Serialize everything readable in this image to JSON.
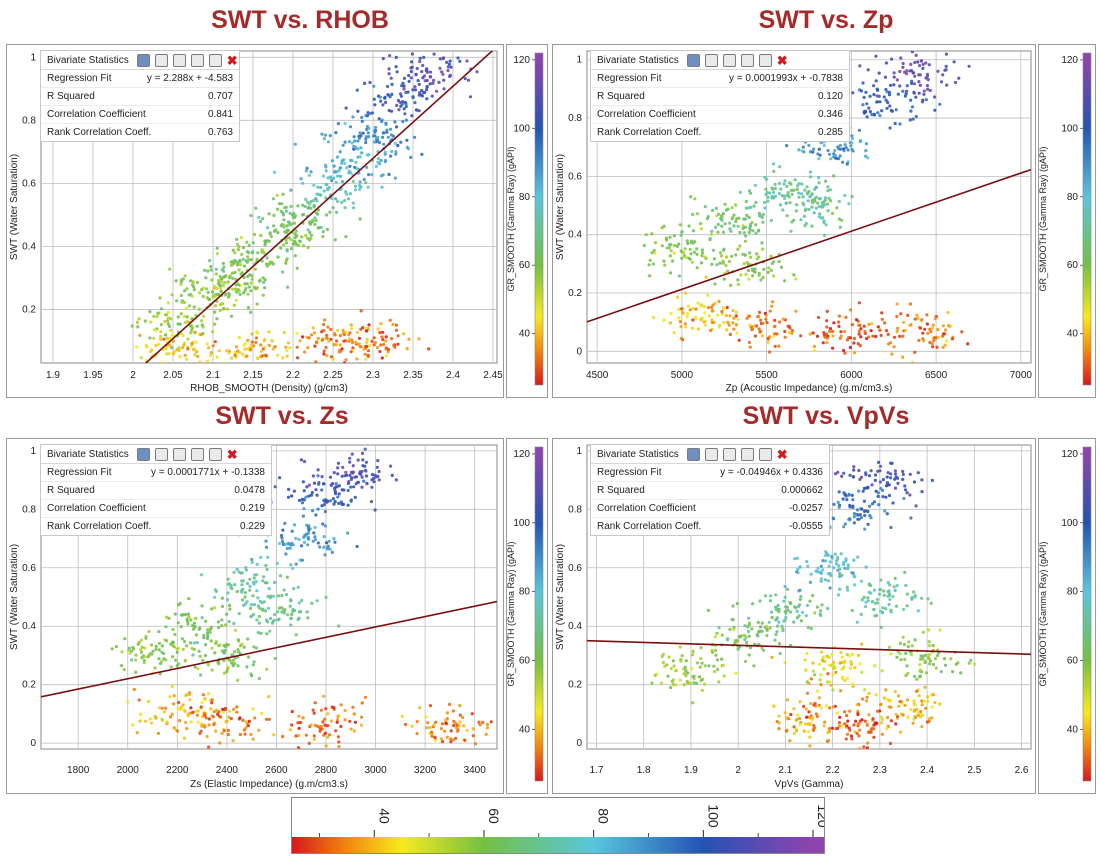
{
  "panels": [
    {
      "title": "SWT vs. RHOB",
      "stats": {
        "header": "Bivariate Statistics",
        "rows": [
          {
            "label": "Regression Fit",
            "value": "y = 2.288x + -4.583"
          },
          {
            "label": "R Squared",
            "value": "0.707"
          },
          {
            "label": "Correlation Coefficient",
            "value": "0.841"
          },
          {
            "label": "Rank Correlation Coeff.",
            "value": "0.763"
          }
        ]
      }
    },
    {
      "title": "SWT vs. Zp",
      "stats": {
        "header": "Bivariate Statistics",
        "rows": [
          {
            "label": "Regression Fit",
            "value": "y = 0.0001993x + -0.7838"
          },
          {
            "label": "R Squared",
            "value": "0.120"
          },
          {
            "label": "Correlation Coefficient",
            "value": "0.346"
          },
          {
            "label": "Rank Correlation Coeff.",
            "value": "0.285"
          }
        ]
      }
    },
    {
      "title": "SWT vs. Zs",
      "stats": {
        "header": "Bivariate Statistics",
        "rows": [
          {
            "label": "Regression Fit",
            "value": "y = 0.0001771x + -0.1338"
          },
          {
            "label": "R Squared",
            "value": "0.0478"
          },
          {
            "label": "Correlation Coefficient",
            "value": "0.219"
          },
          {
            "label": "Rank Correlation Coeff.",
            "value": "0.229"
          }
        ]
      }
    },
    {
      "title": "SWT vs. VpVs",
      "stats": {
        "header": "Bivariate Statistics",
        "rows": [
          {
            "label": "Regression Fit",
            "value": "y = -0.04946x + 0.4336"
          },
          {
            "label": "R Squared",
            "value": "0.000662"
          },
          {
            "label": "Correlation Coefficient",
            "value": "-0.0257"
          },
          {
            "label": "Rank Correlation Coeff.",
            "value": "-0.0555"
          }
        ]
      }
    }
  ],
  "colors": {
    "title": "#a52a2a",
    "regression_line": "#7b0f0f",
    "grid": "#bdbdbd",
    "gamma_stops": [
      {
        "v": 25,
        "c": "#d7191c"
      },
      {
        "v": 35,
        "c": "#f0880e"
      },
      {
        "v": 45,
        "c": "#f7ea1e"
      },
      {
        "v": 60,
        "c": "#74c043"
      },
      {
        "v": 80,
        "c": "#59c6dc"
      },
      {
        "v": 100,
        "c": "#2454b3"
      },
      {
        "v": 120,
        "c": "#8e44ad"
      }
    ]
  },
  "colorbar": {
    "title": "GR_SMOOTH (Gamma Ray) (gAPI)",
    "ticks": [
      "40",
      "60",
      "80",
      "100",
      "120"
    ],
    "range": [
      25,
      122
    ]
  },
  "chart_data": [
    {
      "type": "scatter",
      "title": "SWT vs. RHOB",
      "xlabel": "RHOB_SMOOTH (Density) (g/cm3)",
      "ylabel": "SWT (Water Saturation)",
      "xlim": [
        1.885,
        2.455
      ],
      "ylim": [
        0.03,
        1.02
      ],
      "xticks": [
        "1.9",
        "1.95",
        "2",
        "2.05",
        "2.1",
        "2.15",
        "2.2",
        "2.25",
        "2.3",
        "2.35",
        "2.4",
        "2.45"
      ],
      "yticks": [
        "0.2",
        "0.4",
        "0.6",
        "0.8",
        "1"
      ],
      "regression": {
        "slope": 2.288,
        "intercept": -4.583
      },
      "color_by": "GR_SMOOTH (Gamma Ray) (gAPI)",
      "points": [
        [
          2.05,
          0.15,
          56
        ],
        [
          2.1,
          0.25,
          58
        ],
        [
          2.15,
          0.35,
          62
        ],
        [
          2.2,
          0.5,
          66
        ],
        [
          2.25,
          0.6,
          78
        ],
        [
          2.3,
          0.75,
          90
        ],
        [
          2.33,
          0.88,
          102
        ],
        [
          2.37,
          0.95,
          108
        ],
        [
          2.05,
          0.08,
          42
        ],
        [
          2.15,
          0.07,
          40
        ],
        [
          2.25,
          0.09,
          36
        ],
        [
          2.3,
          0.1,
          32
        ],
        [
          2.2,
          0.42,
          60
        ],
        [
          2.28,
          0.68,
          85
        ],
        [
          2.12,
          0.28,
          57
        ]
      ]
    },
    {
      "type": "scatter",
      "title": "SWT vs. Zp",
      "xlabel": "Zp (Acoustic Impedance) (g.m/cm3.s)",
      "ylabel": "SWT (Water Saturation)",
      "xlim": [
        4440,
        7060
      ],
      "ylim": [
        -0.04,
        1.03
      ],
      "xticks": [
        "4500",
        "5000",
        "5500",
        "6000",
        "6500",
        "7000"
      ],
      "yticks": [
        "0",
        "0.2",
        "0.4",
        "0.6",
        "0.8",
        "1"
      ],
      "regression": {
        "slope": 0.0001993,
        "intercept": -0.7838
      },
      "color_by": "GR_SMOOTH (Gamma Ray) (gAPI)",
      "points": [
        [
          5000,
          0.35,
          60
        ],
        [
          5300,
          0.45,
          65
        ],
        [
          5600,
          0.55,
          72
        ],
        [
          5900,
          0.7,
          88
        ],
        [
          6200,
          0.85,
          100
        ],
        [
          6400,
          0.95,
          110
        ],
        [
          5100,
          0.12,
          40
        ],
        [
          5500,
          0.08,
          34
        ],
        [
          6000,
          0.07,
          30
        ],
        [
          6400,
          0.07,
          34
        ],
        [
          5400,
          0.3,
          58
        ],
        [
          5800,
          0.5,
          70
        ]
      ]
    },
    {
      "type": "scatter",
      "title": "SWT vs. Zs",
      "xlabel": "Zs (Elastic Impedance) (g.m/cm3.s)",
      "ylabel": "SWT (Water Saturation)",
      "xlim": [
        1650,
        3490
      ],
      "ylim": [
        -0.02,
        1.02
      ],
      "xticks": [
        "1800",
        "2000",
        "2200",
        "2400",
        "2600",
        "2800",
        "3000",
        "3200",
        "3400"
      ],
      "yticks": [
        "0",
        "0.2",
        "0.4",
        "0.6",
        "0.8",
        "1"
      ],
      "regression": {
        "slope": 0.0001771,
        "intercept": -0.1338
      },
      "color_by": "GR_SMOOTH (Gamma Ray) (gAPI)",
      "points": [
        [
          2100,
          0.3,
          58
        ],
        [
          2300,
          0.4,
          62
        ],
        [
          2500,
          0.55,
          72
        ],
        [
          2700,
          0.7,
          88
        ],
        [
          2800,
          0.85,
          100
        ],
        [
          2900,
          0.92,
          108
        ],
        [
          2200,
          0.1,
          40
        ],
        [
          2400,
          0.08,
          34
        ],
        [
          2800,
          0.07,
          32
        ],
        [
          3300,
          0.06,
          36
        ],
        [
          2400,
          0.3,
          60
        ],
        [
          2600,
          0.45,
          68
        ]
      ]
    },
    {
      "type": "scatter",
      "title": "SWT vs. VpVs",
      "xlabel": "VpVs (Gamma)",
      "ylabel": "SWT (Water Saturation)",
      "xlim": [
        1.68,
        2.62
      ],
      "ylim": [
        -0.02,
        1.02
      ],
      "xticks": [
        "1.7",
        "1.8",
        "1.9",
        "2",
        "2.1",
        "2.2",
        "2.3",
        "2.4",
        "2.5",
        "2.6"
      ],
      "yticks": [
        "0",
        "0.2",
        "0.4",
        "0.6",
        "0.8",
        "1"
      ],
      "regression": {
        "slope": -0.04946,
        "intercept": 0.4336
      },
      "color_by": "GR_SMOOTH (Gamma Ray) (gAPI)",
      "points": [
        [
          2.0,
          0.35,
          62
        ],
        [
          2.1,
          0.45,
          68
        ],
        [
          2.2,
          0.6,
          80
        ],
        [
          2.25,
          0.8,
          95
        ],
        [
          2.3,
          0.9,
          105
        ],
        [
          2.15,
          0.08,
          36
        ],
        [
          2.25,
          0.06,
          30
        ],
        [
          2.35,
          0.12,
          40
        ],
        [
          2.4,
          0.3,
          58
        ],
        [
          1.9,
          0.25,
          56
        ],
        [
          2.2,
          0.25,
          45
        ],
        [
          2.3,
          0.5,
          72
        ]
      ]
    }
  ]
}
